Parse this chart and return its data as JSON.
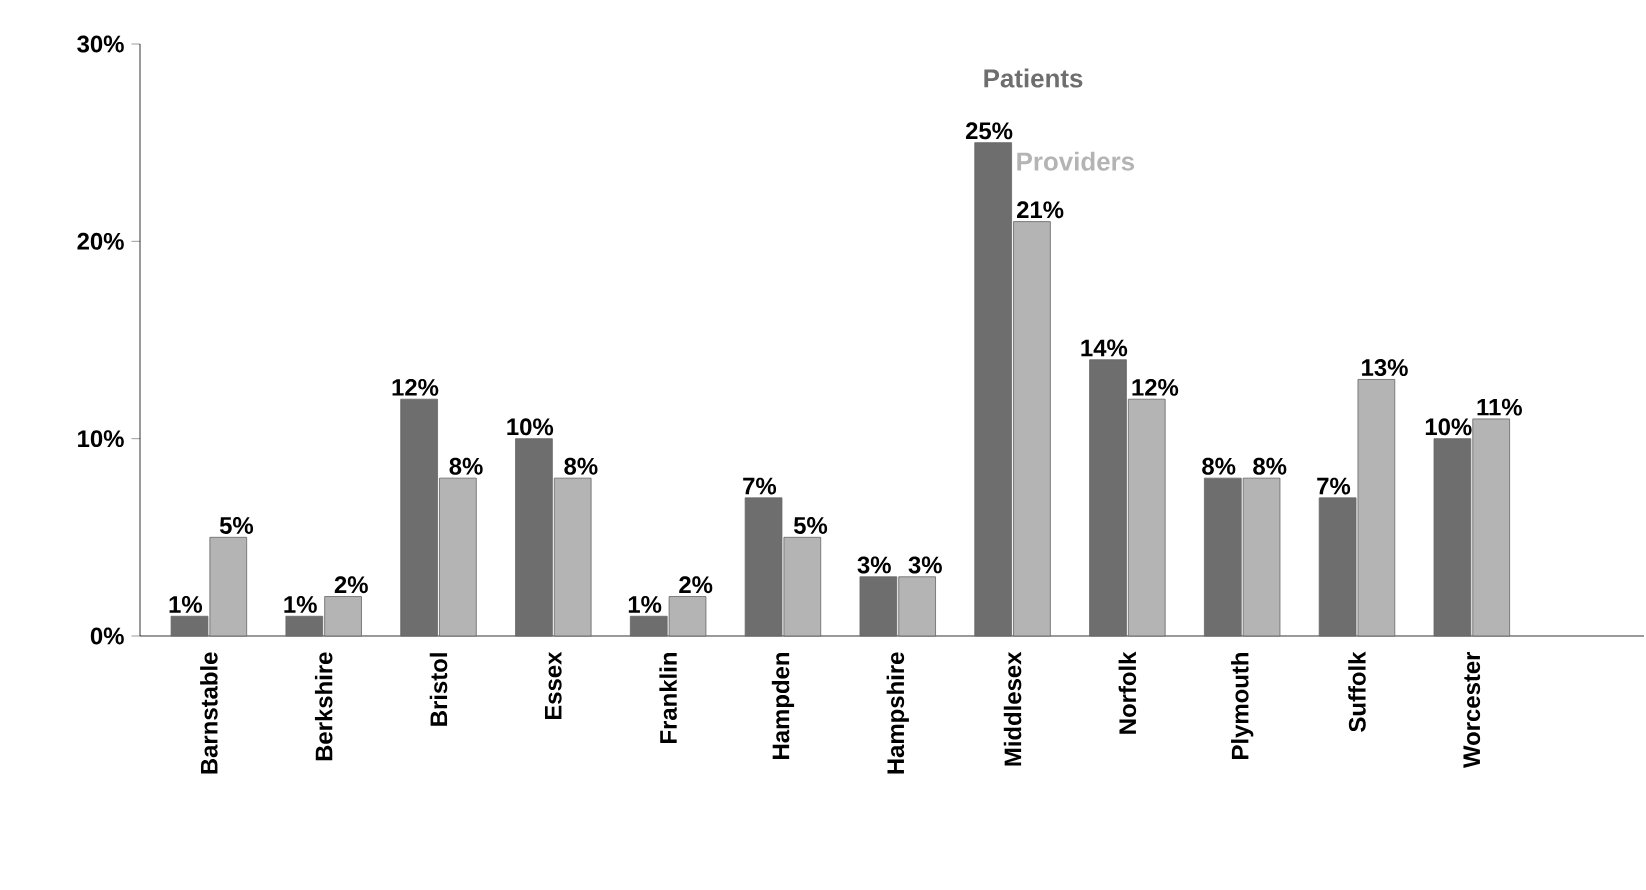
{
  "chart_data": {
    "type": "bar",
    "categories": [
      "Barnstable",
      "Berkshire",
      "Bristol",
      "Essex",
      "Franklin",
      "Hampden",
      "Hampshire",
      "Middlesex",
      "Norfolk",
      "Plymouth",
      "Suffolk",
      "Worcester"
    ],
    "series": [
      {
        "name": "Patients",
        "color": "#6e6e6e",
        "values": [
          1,
          1,
          12,
          10,
          1,
          7,
          3,
          25,
          14,
          8,
          7,
          10
        ],
        "value_labels": [
          "1%",
          "1%",
          "12%",
          "10%",
          "1%",
          "7%",
          "3%",
          "25%",
          "14%",
          "8%",
          "7%",
          "10%"
        ]
      },
      {
        "name": "Providers",
        "color": "#b4b4b4",
        "values": [
          5,
          2,
          8,
          8,
          2,
          5,
          3,
          21,
          12,
          8,
          13,
          11
        ],
        "value_labels": [
          "5%",
          "2%",
          "8%",
          "8%",
          "2%",
          "5%",
          "3%",
          "21%",
          "12%",
          "8%",
          "13%",
          "11%"
        ]
      }
    ],
    "ylim": [
      0,
      30
    ],
    "yticks": [
      {
        "value": 0,
        "label": "0%"
      },
      {
        "value": 10,
        "label": "10%"
      },
      {
        "value": 20,
        "label": "20%"
      },
      {
        "value": 30,
        "label": "30%"
      }
    ],
    "grid": false,
    "legend": false
  }
}
